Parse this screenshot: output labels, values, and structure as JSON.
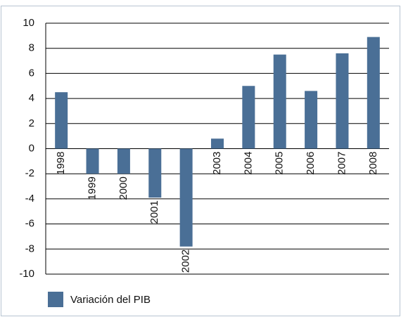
{
  "chart_data": {
    "type": "bar",
    "categories": [
      "1998",
      "1999",
      "2000",
      "2001",
      "2002",
      "2003",
      "2004",
      "2005",
      "2006",
      "2007",
      "2008"
    ],
    "series": [
      {
        "name": "Variación del PIB",
        "color": "#4a6f96",
        "values": [
          4.5,
          -2,
          -2,
          -3.9,
          -7.8,
          0.8,
          5,
          7.5,
          4.6,
          7.6,
          8.9
        ]
      }
    ],
    "ylim": [
      -10,
      10
    ],
    "yticks": [
      -10,
      -8,
      -6,
      -4,
      -2,
      0,
      2,
      4,
      6,
      8,
      10
    ],
    "grid": true
  }
}
